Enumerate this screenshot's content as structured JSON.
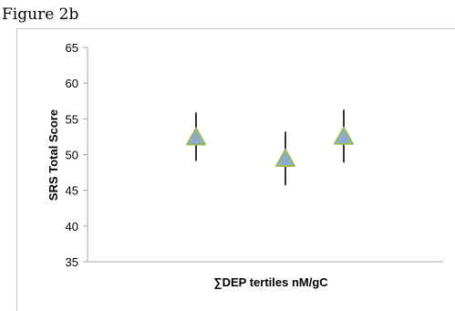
{
  "figure_label": "Figure 2b",
  "chart_data": {
    "type": "scatter",
    "title": "",
    "xlabel": "∑DEP tertiles nM/gC",
    "ylabel": "SRS Total Score",
    "ylim": [
      35,
      65
    ],
    "yticks": [
      35,
      40,
      45,
      50,
      55,
      60,
      65
    ],
    "grid": false,
    "points": [
      {
        "x": 1,
        "y": 52.3,
        "lower": 49.1,
        "upper": 55.9
      },
      {
        "x": 2,
        "y": 49.3,
        "lower": 45.7,
        "upper": 53.2
      },
      {
        "x": 3,
        "y": 52.4,
        "lower": 48.9,
        "upper": 56.3
      }
    ],
    "colors": {
      "marker_fill": "#8eaacd",
      "marker_stroke": "#9bbb59",
      "error_bar": "#000000",
      "axis": "#a6a6a6"
    }
  }
}
